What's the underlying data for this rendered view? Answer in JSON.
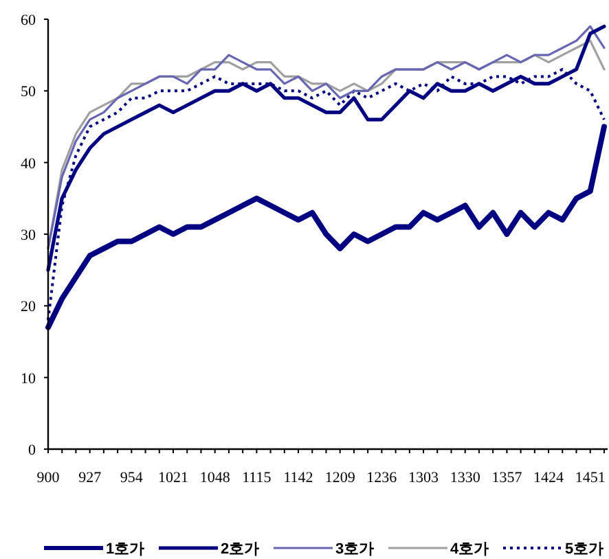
{
  "chart_data": {
    "type": "line",
    "categories": [
      "900",
      null,
      null,
      "927",
      null,
      null,
      "954",
      null,
      null,
      "1021",
      null,
      null,
      "1048",
      null,
      null,
      "1115",
      null,
      null,
      "1142",
      null,
      null,
      "1209",
      null,
      null,
      "1236",
      null,
      null,
      "1303",
      null,
      null,
      "1330",
      null,
      null,
      "1357",
      null,
      null,
      "1424",
      null,
      null,
      "1451",
      null
    ],
    "ylim": [
      0,
      60
    ],
    "yticks": [
      0,
      10,
      20,
      30,
      40,
      50,
      60
    ],
    "grid": false,
    "legend": "bottom",
    "marker": "none",
    "series": [
      {
        "name": "1호가",
        "color": "#000080",
        "line_style": "solid",
        "values": [
          17,
          21,
          24,
          27,
          28,
          29,
          29,
          30,
          31,
          30,
          31,
          31,
          32,
          33,
          34,
          35,
          34,
          33,
          32,
          33,
          30,
          28,
          30,
          29,
          30,
          31,
          31,
          33,
          32,
          33,
          34,
          31,
          33,
          30,
          33,
          31,
          33,
          32,
          35,
          36,
          45
        ]
      },
      {
        "name": "2호가",
        "color": "#000080",
        "line_style": "solid",
        "values": [
          25,
          35,
          39,
          42,
          44,
          45,
          46,
          47,
          48,
          47,
          48,
          49,
          50,
          50,
          51,
          50,
          51,
          49,
          49,
          48,
          47,
          47,
          49,
          46,
          46,
          48,
          50,
          49,
          51,
          50,
          50,
          51,
          50,
          51,
          52,
          51,
          51,
          52,
          53,
          58,
          59
        ]
      },
      {
        "name": "3호가",
        "color": "#6666b3",
        "line_style": "solid",
        "values": [
          28,
          38,
          43,
          46,
          47,
          49,
          50,
          51,
          52,
          52,
          51,
          53,
          53,
          55,
          54,
          53,
          53,
          51,
          52,
          50,
          51,
          49,
          50,
          50,
          52,
          53,
          53,
          53,
          54,
          53,
          54,
          53,
          54,
          55,
          54,
          55,
          55,
          56,
          57,
          59,
          56
        ]
      },
      {
        "name": "4호가",
        "color": "#a0a0a0",
        "line_style": "solid",
        "values": [
          28,
          39,
          44,
          47,
          48,
          49,
          51,
          51,
          52,
          52,
          52,
          53,
          54,
          54,
          53,
          54,
          54,
          52,
          52,
          51,
          51,
          50,
          51,
          50,
          51,
          53,
          53,
          53,
          54,
          54,
          54,
          53,
          54,
          54,
          54,
          55,
          54,
          55,
          56,
          57,
          53
        ]
      },
      {
        "name": "5호가",
        "color": "#000080",
        "line_style": "dotted",
        "values": [
          18,
          34,
          41,
          45,
          46,
          47,
          49,
          49,
          50,
          50,
          50,
          51,
          52,
          51,
          51,
          51,
          51,
          50,
          50,
          49,
          50,
          48,
          50,
          49,
          50,
          51,
          50,
          51,
          50,
          52,
          51,
          51,
          52,
          52,
          51,
          52,
          52,
          53,
          51,
          50,
          46
        ]
      }
    ]
  }
}
